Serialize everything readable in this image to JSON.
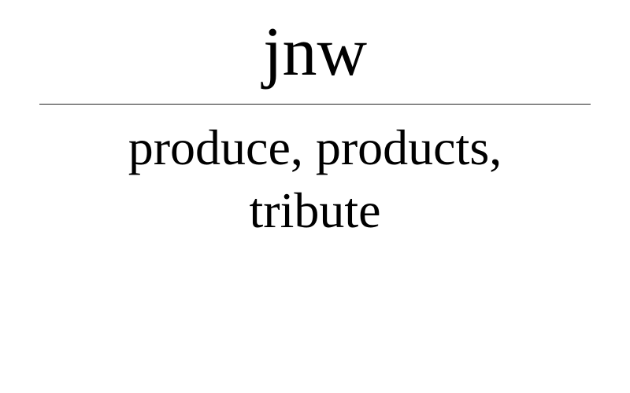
{
  "header": {
    "brand": "jnw"
  },
  "tagline": {
    "line1": "produce, products,",
    "line2": "tribute"
  },
  "colors": {
    "background": "#ffffff",
    "text": "#000000",
    "rule": "#222222"
  }
}
